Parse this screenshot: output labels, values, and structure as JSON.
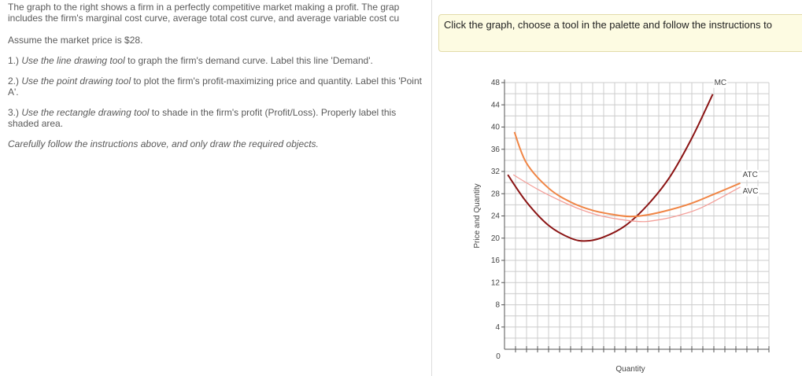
{
  "instructions": {
    "intro": [
      "The graph to the right shows a firm in a perfectly competitive market making a profit.  The grap",
      "includes the firm's marginal cost curve, average total cost curve, and average variable cost cu"
    ],
    "price_note": "Assume the market price is $28.",
    "steps": [
      {
        "number": "1.)",
        "tool": "Use the line drawing tool",
        "text": " to graph the firm's demand curve. Label this line 'Demand'."
      },
      {
        "number": "2.)",
        "tool": "Use the point drawing tool",
        "text": " to plot the firm's profit-maximizing price and quantity. Label this 'Point A'."
      },
      {
        "number": "3.)",
        "tool": "Use the rectangle drawing tool",
        "text": " to shade in the firm's profit (Profit/Loss). Properly label this shaded area."
      }
    ],
    "closing": "Carefully follow the instructions above, and only draw the required objects."
  },
  "toolbar_hint": "Click the graph, choose a tool in the palette and follow the instructions to",
  "chart_data": {
    "type": "line",
    "x_label": "Quantity",
    "y_label": "Price and Quantity",
    "xlim": [
      0,
      24
    ],
    "xticks": [
      0
    ],
    "ylim": [
      0,
      48
    ],
    "yticks": [
      4,
      8,
      12,
      16,
      20,
      24,
      28,
      32,
      36,
      40,
      44,
      48
    ],
    "grid": true,
    "series": [
      {
        "name": "MC",
        "color": "#8b1414",
        "x": [
          0.3,
          2,
          4,
          6,
          7.4,
          9,
          11,
          13,
          15,
          17,
          18.9
        ],
        "values": [
          31.4,
          26.5,
          22.3,
          20,
          19.5,
          20.2,
          22.3,
          26,
          31,
          38,
          45.9
        ]
      },
      {
        "name": "ATC",
        "color": "#f08545",
        "x": [
          0.9,
          2,
          4,
          6,
          8,
          10,
          11.4,
          13,
          15,
          17,
          19,
          21.4
        ],
        "values": [
          39.1,
          33.5,
          29,
          26.5,
          25,
          24.2,
          23.9,
          24.2,
          25.1,
          26.3,
          27.9,
          29.9
        ]
      },
      {
        "name": "AVC",
        "color": "#f4a09a",
        "x": [
          0.8,
          3,
          5,
          7,
          9,
          12.1,
          14,
          16,
          18,
          21.4
        ],
        "values": [
          31.4,
          28.8,
          26.8,
          25.1,
          23.9,
          23,
          23.3,
          24.2,
          25.6,
          29.2
        ]
      }
    ]
  }
}
